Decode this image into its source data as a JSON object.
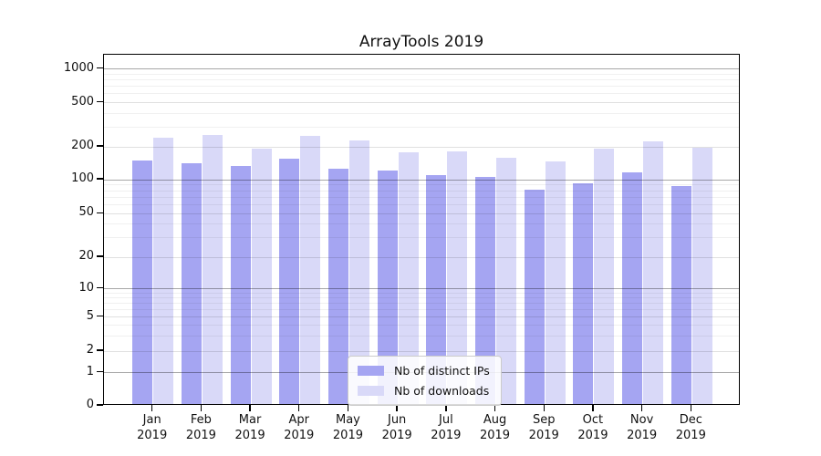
{
  "title": "ArrayTools 2019",
  "axes": {
    "ytick_labels": [
      "0",
      "1",
      "2",
      "5",
      "10",
      "20",
      "50",
      "100",
      "200",
      "500",
      "1000"
    ],
    "month_labels": [
      "Jan",
      "Feb",
      "Mar",
      "Apr",
      "May",
      "Jun",
      "Jul",
      "Aug",
      "Sep",
      "Oct",
      "Nov",
      "Dec"
    ],
    "year_label": "2019"
  },
  "legend": {
    "items": [
      {
        "label": "Nb of distinct IPs",
        "color": "#a5a5f2"
      },
      {
        "label": "Nb of downloads",
        "color": "#d9d9f8"
      }
    ]
  },
  "colors": {
    "bar_distinct_ips": "#a5a5f2",
    "bar_downloads": "#d9d9f8",
    "spine": "#000000",
    "grid_decade": "rgba(0,0,0,0.34)",
    "grid_major": "rgba(0,0,0,0.12)",
    "grid_minor": "rgba(0,0,0,0.06)"
  },
  "chart_data": {
    "type": "bar",
    "title": "ArrayTools 2019",
    "categories": [
      "Jan 2019",
      "Feb 2019",
      "Mar 2019",
      "Apr 2019",
      "May 2019",
      "Jun 2019",
      "Jul 2019",
      "Aug 2019",
      "Sep 2019",
      "Oct 2019",
      "Nov 2019",
      "Dec 2019"
    ],
    "series": [
      {
        "name": "Nb of distinct IPs",
        "color": "#a5a5f2",
        "values": [
          143,
          135,
          129,
          150,
          122,
          116,
          105,
          102,
          79,
          90,
          112,
          84
        ]
      },
      {
        "name": "Nb of downloads",
        "color": "#d9d9f8",
        "values": [
          232,
          245,
          185,
          240,
          222,
          172,
          175,
          154,
          142,
          186,
          216,
          190
        ]
      }
    ],
    "xlabel": "",
    "ylabel": "",
    "yscale": "log-like (linear segment 0-1, logarithmic above)",
    "ytick_values": [
      0,
      1,
      2,
      5,
      10,
      20,
      50,
      100,
      200,
      500,
      1000
    ],
    "minor_gridline_values": [
      3,
      4,
      6,
      7,
      8,
      9,
      30,
      40,
      60,
      70,
      80,
      90,
      300,
      400,
      600,
      700,
      800,
      900
    ],
    "ylim": [
      0,
      1350
    ],
    "grid": true,
    "grid_above_bars": true,
    "legend_position": "lower center, inside plot"
  }
}
